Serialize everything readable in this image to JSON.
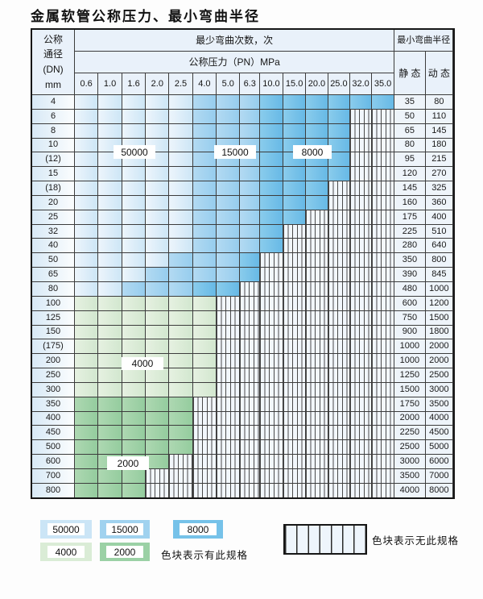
{
  "title": "金属软管公称压力、最小弯曲半径",
  "table": {
    "header": {
      "dn_lines": "公称\n通径\n(DN)\nmm",
      "bend_cycles": "最少弯曲次数，次",
      "min_radius": "最小弯曲半径",
      "pressure": "公称压力（PN）MPa",
      "static": "静 态",
      "dynamic": "动 态",
      "pressures": [
        "0.6",
        "1.0",
        "1.6",
        "2.0",
        "2.5",
        "4.0",
        "5.0",
        "6.3",
        "10.0",
        "15.0",
        "20.0",
        "25.0",
        "32.0",
        "35.0"
      ]
    },
    "zone_legend_values": [
      "50000",
      "15000",
      "8000",
      "4000",
      "2000"
    ],
    "rows": [
      {
        "dn": "4",
        "zones": [
          [
            "50000",
            5
          ],
          [
            "15000",
            3
          ],
          [
            "8000",
            6
          ]
        ],
        "static": "35",
        "dynamic": "80"
      },
      {
        "dn": "6",
        "zones": [
          [
            "50000",
            5
          ],
          [
            "15000",
            3
          ],
          [
            "8000",
            4
          ],
          [
            "none",
            2
          ]
        ],
        "static": "50",
        "dynamic": "110"
      },
      {
        "dn": "8",
        "zones": [
          [
            "50000",
            5
          ],
          [
            "15000",
            3
          ],
          [
            "8000",
            4
          ],
          [
            "none",
            2
          ]
        ],
        "static": "65",
        "dynamic": "145"
      },
      {
        "dn": "10",
        "zones": [
          [
            "50000",
            5
          ],
          [
            "15000",
            3
          ],
          [
            "8000",
            4
          ],
          [
            "none",
            2
          ]
        ],
        "static": "80",
        "dynamic": "180"
      },
      {
        "dn": "(12)",
        "zones": [
          [
            "50000",
            5
          ],
          [
            "15000",
            3
          ],
          [
            "8000",
            4
          ],
          [
            "none",
            2
          ]
        ],
        "static": "95",
        "dynamic": "215"
      },
      {
        "dn": "15",
        "zones": [
          [
            "50000",
            5
          ],
          [
            "15000",
            3
          ],
          [
            "8000",
            4
          ],
          [
            "none",
            2
          ]
        ],
        "static": "120",
        "dynamic": "270"
      },
      {
        "dn": "(18)",
        "zones": [
          [
            "50000",
            5
          ],
          [
            "15000",
            3
          ],
          [
            "8000",
            3
          ],
          [
            "none",
            3
          ]
        ],
        "static": "145",
        "dynamic": "325"
      },
      {
        "dn": "20",
        "zones": [
          [
            "50000",
            5
          ],
          [
            "15000",
            3
          ],
          [
            "8000",
            3
          ],
          [
            "none",
            3
          ]
        ],
        "static": "160",
        "dynamic": "360"
      },
      {
        "dn": "25",
        "zones": [
          [
            "50000",
            5
          ],
          [
            "15000",
            3
          ],
          [
            "8000",
            2
          ],
          [
            "none",
            4
          ]
        ],
        "static": "175",
        "dynamic": "400"
      },
      {
        "dn": "32",
        "zones": [
          [
            "50000",
            5
          ],
          [
            "15000",
            3
          ],
          [
            "8000",
            1
          ],
          [
            "none",
            5
          ]
        ],
        "static": "225",
        "dynamic": "510"
      },
      {
        "dn": "40",
        "zones": [
          [
            "50000",
            5
          ],
          [
            "15000",
            3
          ],
          [
            "8000",
            1
          ],
          [
            "none",
            5
          ]
        ],
        "static": "280",
        "dynamic": "640"
      },
      {
        "dn": "50",
        "zones": [
          [
            "50000",
            4
          ],
          [
            "15000",
            3
          ],
          [
            "8000",
            1
          ],
          [
            "none",
            6
          ]
        ],
        "static": "350",
        "dynamic": "800"
      },
      {
        "dn": "65",
        "zones": [
          [
            "50000",
            3
          ],
          [
            "15000",
            4
          ],
          [
            "8000",
            1
          ],
          [
            "none",
            6
          ]
        ],
        "static": "390",
        "dynamic": "845"
      },
      {
        "dn": "80",
        "zones": [
          [
            "50000",
            2
          ],
          [
            "15000",
            3
          ],
          [
            "8000",
            2
          ],
          [
            "none",
            7
          ]
        ],
        "static": "480",
        "dynamic": "1000"
      },
      {
        "dn": "100",
        "zones": [
          [
            "4000",
            6
          ],
          [
            "none",
            8
          ]
        ],
        "static": "600",
        "dynamic": "1200"
      },
      {
        "dn": "125",
        "zones": [
          [
            "4000",
            6
          ],
          [
            "none",
            8
          ]
        ],
        "static": "750",
        "dynamic": "1500"
      },
      {
        "dn": "150",
        "zones": [
          [
            "4000",
            6
          ],
          [
            "none",
            8
          ]
        ],
        "static": "900",
        "dynamic": "1800"
      },
      {
        "dn": "(175)",
        "zones": [
          [
            "4000",
            6
          ],
          [
            "none",
            8
          ]
        ],
        "static": "1000",
        "dynamic": "2000"
      },
      {
        "dn": "200",
        "zones": [
          [
            "4000",
            6
          ],
          [
            "none",
            8
          ]
        ],
        "static": "1000",
        "dynamic": "2000"
      },
      {
        "dn": "250",
        "zones": [
          [
            "4000",
            6
          ],
          [
            "none",
            8
          ]
        ],
        "static": "1250",
        "dynamic": "2500"
      },
      {
        "dn": "300",
        "zones": [
          [
            "4000",
            6
          ],
          [
            "none",
            8
          ]
        ],
        "static": "1500",
        "dynamic": "3000"
      },
      {
        "dn": "350",
        "zones": [
          [
            "2000",
            5
          ],
          [
            "none",
            9
          ]
        ],
        "static": "1750",
        "dynamic": "3500"
      },
      {
        "dn": "400",
        "zones": [
          [
            "2000",
            5
          ],
          [
            "none",
            9
          ]
        ],
        "static": "2000",
        "dynamic": "4000"
      },
      {
        "dn": "450",
        "zones": [
          [
            "2000",
            5
          ],
          [
            "none",
            9
          ]
        ],
        "static": "2250",
        "dynamic": "4500"
      },
      {
        "dn": "500",
        "zones": [
          [
            "2000",
            5
          ],
          [
            "none",
            9
          ]
        ],
        "static": "2500",
        "dynamic": "5000"
      },
      {
        "dn": "600",
        "zones": [
          [
            "2000",
            4
          ],
          [
            "none",
            10
          ]
        ],
        "static": "3000",
        "dynamic": "6000"
      },
      {
        "dn": "700",
        "zones": [
          [
            "2000",
            3
          ],
          [
            "none",
            11
          ]
        ],
        "static": "3500",
        "dynamic": "7000"
      },
      {
        "dn": "800",
        "zones": [
          [
            "2000",
            3
          ],
          [
            "none",
            11
          ]
        ],
        "static": "4000",
        "dynamic": "8000"
      }
    ]
  },
  "overlay_labels": {
    "cycles_50000": "50000",
    "cycles_15000": "15000",
    "cycles_8000": "8000",
    "cycles_4000": "4000",
    "cycles_2000": "2000"
  },
  "legend": {
    "swatch_50000": "50000",
    "swatch_15000": "15000",
    "swatch_8000": "8000",
    "swatch_4000": "4000",
    "swatch_2000": "2000",
    "has_spec_caption": "色块表示有此规格",
    "no_spec_caption": "色块表示无此规格"
  },
  "zone_colors": {
    "50000": "#cde6f6",
    "15000": "#96cdee",
    "8000": "#67b9e6",
    "4000": "#d2e7cf",
    "2000": "#94cc9e",
    "no_spec_bg": "#f2f7fc"
  }
}
